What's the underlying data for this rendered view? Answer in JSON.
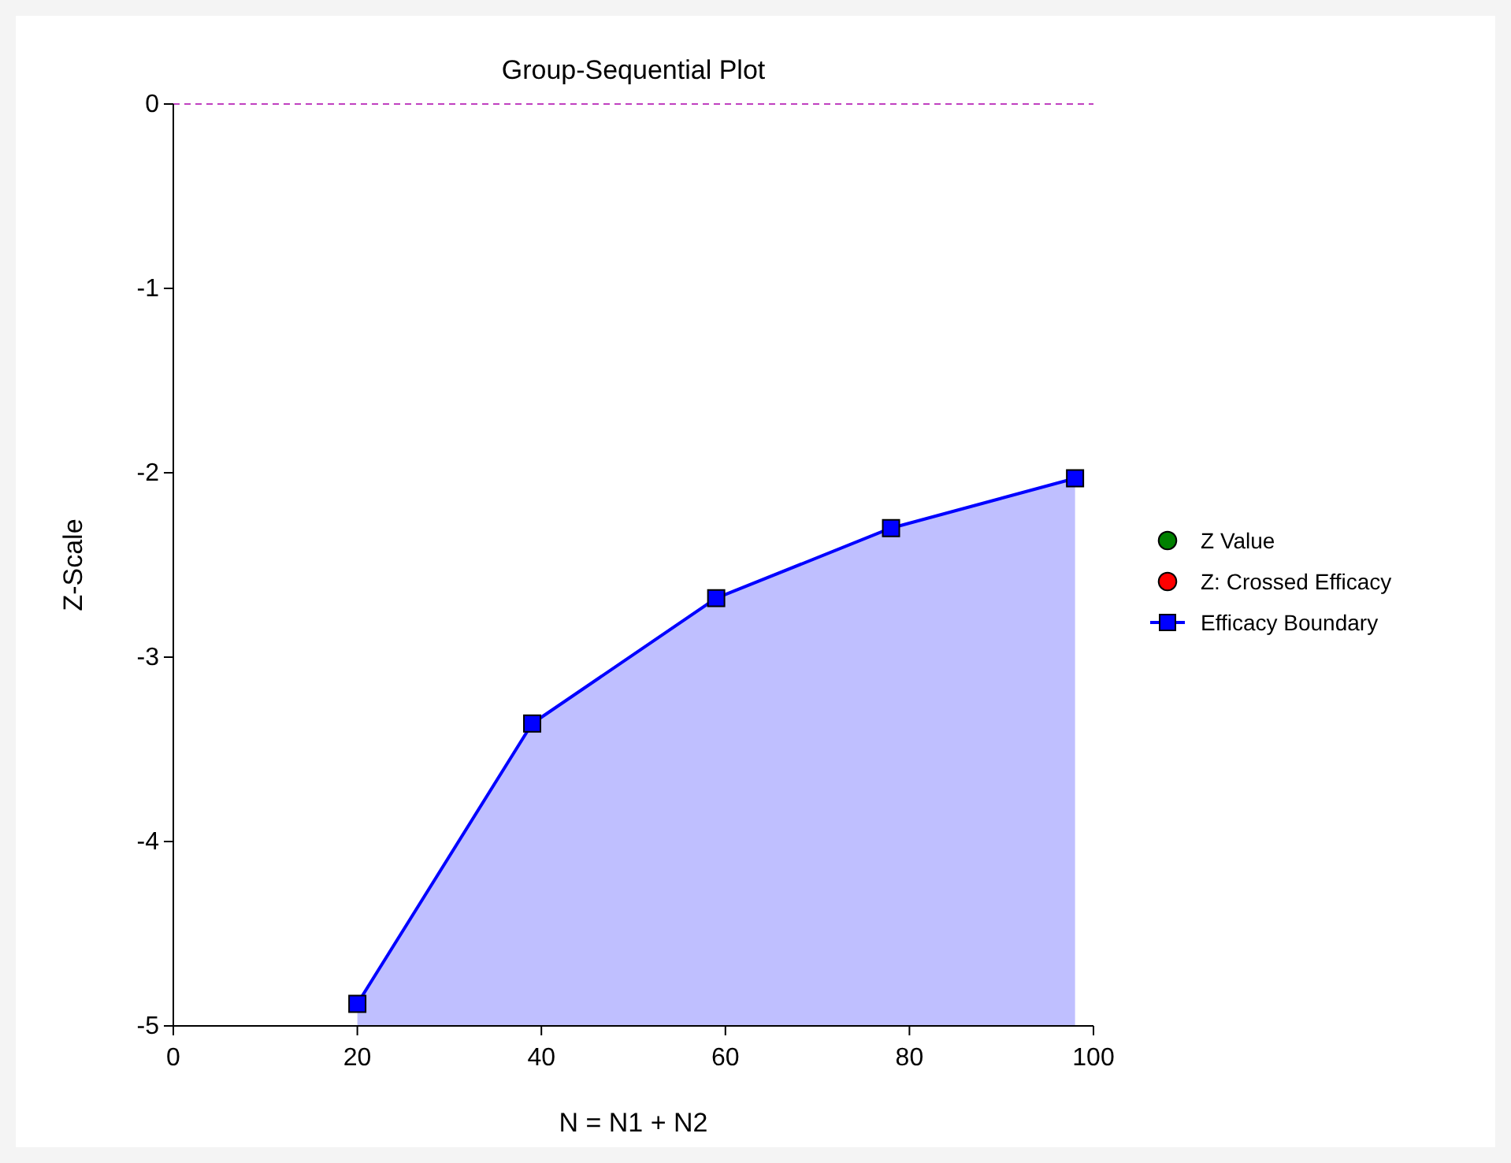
{
  "chart_data": {
    "type": "line",
    "title": "Group-Sequential Plot",
    "xlabel": "N = N1 + N2",
    "ylabel": "Z-Scale",
    "xlim": [
      0,
      100
    ],
    "xticks": [
      0,
      20,
      40,
      60,
      80,
      100
    ],
    "ylim": [
      -5,
      0
    ],
    "yticks": [
      -5,
      -4,
      -3,
      -2,
      -1,
      0
    ],
    "grid": false,
    "legend": "right",
    "series": [
      {
        "name": "Z Value",
        "type": "scatter",
        "color": "#008000",
        "marker": "circle"
      },
      {
        "name": "Z: Crossed Efficacy",
        "type": "scatter",
        "color": "#ff0000",
        "marker": "circle"
      },
      {
        "name": "Efficacy Boundary",
        "color": "#0000ff",
        "marker": "square",
        "lower": [
          -5,
          -5,
          -5,
          -5,
          -5
        ],
        "upper": [
          -4.88,
          -3.36,
          -2.68,
          -2.3,
          -2.03
        ],
        "x": [
          20,
          39,
          59,
          78,
          98
        ],
        "values": [
          -4.88,
          -3.36,
          -2.68,
          -2.3,
          -2.03
        ]
      }
    ],
    "ref_lines": [
      {
        "axis": "y",
        "value": 0,
        "color": "#c040c0",
        "line_style": "dashed"
      }
    ]
  }
}
